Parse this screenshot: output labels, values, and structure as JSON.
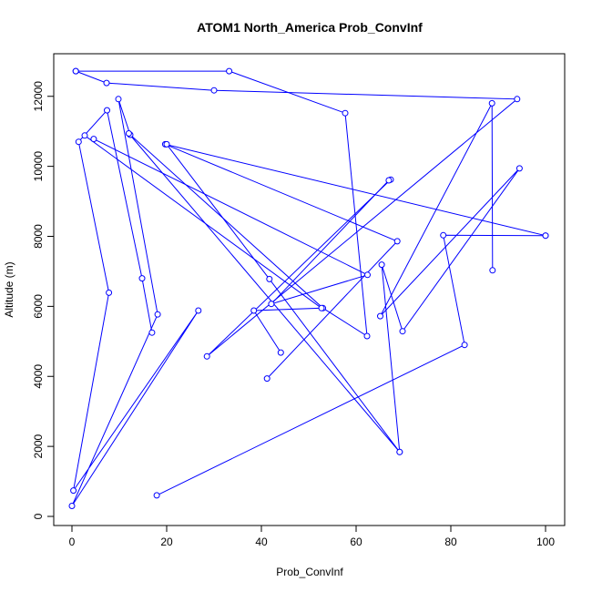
{
  "chart_data": {
    "type": "line",
    "title": "ATOM1 North_America Prob_ConvInf",
    "xlabel": "Prob_ConvInf",
    "ylabel": "Altitude (m)",
    "xlim": [
      0,
      100
    ],
    "ylim": [
      0,
      12800
    ],
    "xticks": [
      0,
      20,
      40,
      60,
      80,
      100
    ],
    "yticks": [
      0,
      2000,
      4000,
      6000,
      8000,
      10000,
      12000
    ],
    "grid": false,
    "legend": "none",
    "series_color": "#0000ff",
    "marker": "open-circle",
    "series": [
      {
        "points": [
          [
            0.8,
            12720
          ],
          [
            33.2,
            12720
          ],
          [
            57.7,
            11520
          ],
          [
            62.3,
            5150
          ],
          [
            53.0,
            5950
          ],
          [
            12.3,
            10900
          ],
          [
            9.8,
            11920
          ],
          [
            18.1,
            5770
          ],
          [
            0.0,
            300
          ],
          [
            26.7,
            5880
          ],
          [
            0.3,
            740
          ],
          [
            7.8,
            6390
          ],
          [
            1.4,
            10700
          ],
          [
            7.4,
            11600
          ],
          [
            14.8,
            6800
          ],
          [
            16.9,
            5250
          ]
        ]
      },
      {
        "points": [
          [
            0.8,
            12720
          ],
          [
            7.3,
            12380
          ],
          [
            30.0,
            12170
          ],
          [
            94.0,
            11920
          ],
          [
            28.5,
            4570
          ],
          [
            67.3,
            9620
          ]
        ]
      },
      {
        "points": [
          [
            69.2,
            1840
          ],
          [
            65.4,
            7190
          ],
          [
            69.8,
            5290
          ],
          [
            94.5,
            9940
          ],
          [
            65.1,
            5720
          ],
          [
            88.7,
            11800
          ],
          [
            88.8,
            7030
          ]
        ]
      },
      {
        "points": [
          [
            17.9,
            600
          ],
          [
            82.9,
            4900
          ],
          [
            78.4,
            8030
          ],
          [
            100.0,
            8020
          ]
        ]
      },
      {
        "points": [
          [
            41.2,
            3940
          ],
          [
            68.7,
            7860
          ],
          [
            19.7,
            10630
          ],
          [
            100.0,
            8020
          ]
        ]
      },
      {
        "points": [
          [
            2.7,
            10880
          ],
          [
            52.7,
            5950
          ],
          [
            38.4,
            5880
          ],
          [
            44.1,
            4680
          ]
        ]
      },
      {
        "points": [
          [
            4.6,
            10780
          ],
          [
            62.4,
            6900
          ],
          [
            42.1,
            6070
          ],
          [
            66.9,
            9600
          ]
        ]
      },
      {
        "points": [
          [
            20.0,
            10630
          ],
          [
            41.7,
            6780
          ],
          [
            69.2,
            1840
          ],
          [
            12.0,
            10940
          ]
        ]
      }
    ]
  }
}
